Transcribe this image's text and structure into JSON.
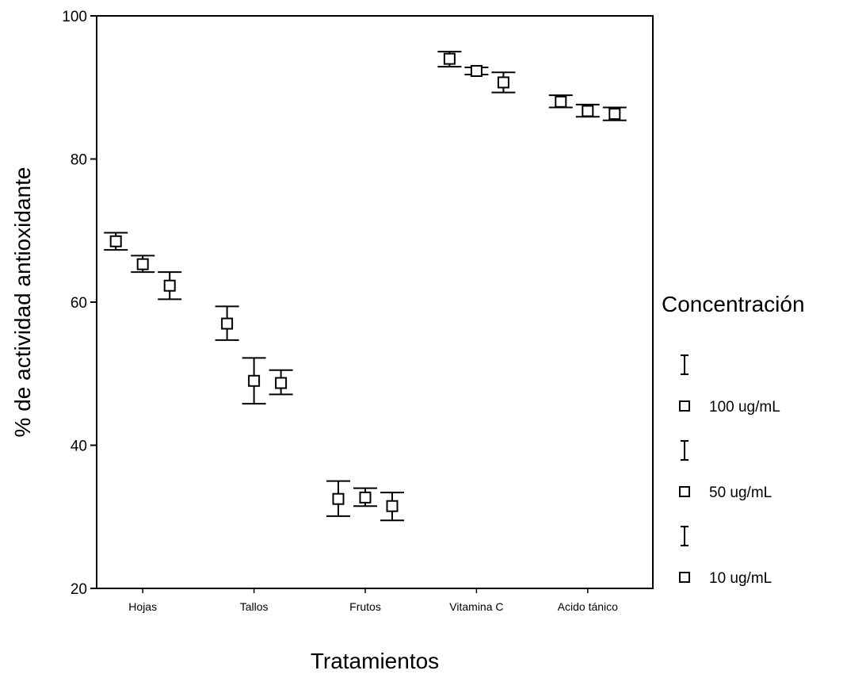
{
  "chart_data": {
    "type": "scatter",
    "title": "",
    "xlabel": "Tratamientos",
    "ylabel": "% de actividad antioxidante",
    "ylim": [
      20,
      100
    ],
    "yticks": [
      "20",
      "40",
      "60",
      "80",
      "100"
    ],
    "categories": [
      "Hojas",
      "Tallos",
      "Frutos",
      "Vitamina C",
      "Acido tánico"
    ],
    "legend_title": "Concentración",
    "legend_position": "right",
    "grid": false,
    "error_bars": true,
    "series": [
      {
        "name": "100 ug/mL",
        "values": [
          68.5,
          57.0,
          32.5,
          94.0,
          88.0
        ],
        "err_low": [
          67.3,
          54.7,
          30.1,
          92.9,
          87.2
        ],
        "err_high": [
          69.7,
          59.4,
          35.0,
          95.0,
          88.9
        ]
      },
      {
        "name": "50 ug/mL",
        "values": [
          65.3,
          49.0,
          32.7,
          92.3,
          86.7
        ],
        "err_low": [
          64.2,
          45.8,
          31.5,
          91.8,
          85.9
        ],
        "err_high": [
          66.5,
          52.2,
          34.0,
          92.8,
          87.6
        ]
      },
      {
        "name": "10 ug/mL",
        "values": [
          62.3,
          48.7,
          31.5,
          90.7,
          86.3
        ],
        "err_low": [
          60.4,
          47.1,
          29.5,
          89.3,
          85.4
        ],
        "err_high": [
          64.2,
          50.5,
          33.4,
          92.1,
          87.2
        ]
      }
    ]
  }
}
